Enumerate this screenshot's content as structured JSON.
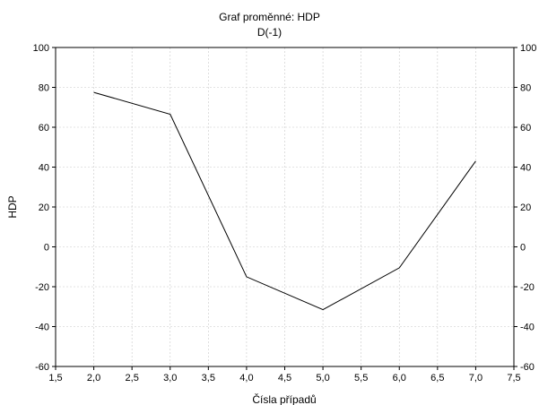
{
  "chart_data": {
    "type": "line",
    "title": "Graf proměnné: HDP",
    "subtitle": "D(-1)",
    "xlabel": "Čísla případů",
    "ylabel": "HDP",
    "xlim": [
      1.5,
      7.5
    ],
    "ylim": [
      -60,
      100
    ],
    "x_ticks": [
      1.5,
      2.0,
      2.5,
      3.0,
      3.5,
      4.0,
      4.5,
      5.0,
      5.5,
      6.0,
      6.5,
      7.0,
      7.5
    ],
    "x_tick_labels": [
      "1,5",
      "2,0",
      "2,5",
      "3,0",
      "3,5",
      "4,0",
      "4,5",
      "5,0",
      "5,5",
      "6,0",
      "6,5",
      "7,0",
      "7,5"
    ],
    "y_ticks": [
      -60,
      -40,
      -20,
      0,
      20,
      40,
      60,
      80,
      100
    ],
    "y_tick_labels": [
      "-60",
      "-40",
      "-20",
      "0",
      "20",
      "40",
      "60",
      "80",
      "100"
    ],
    "grid": true,
    "right_axis_labels": true,
    "series": [
      {
        "x": [
          2,
          3,
          4,
          5,
          6,
          7
        ],
        "values": [
          77.5,
          66.5,
          -15,
          -31.5,
          -10.5,
          43
        ],
        "color": "#000000"
      }
    ]
  }
}
